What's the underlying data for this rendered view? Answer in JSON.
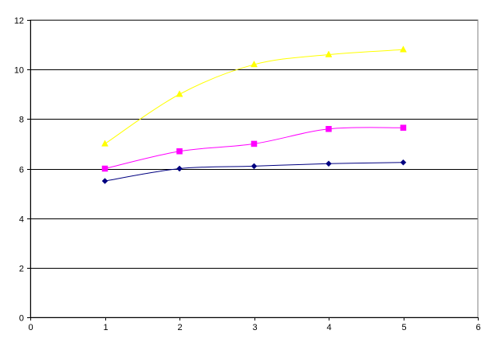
{
  "chart_data": {
    "type": "line",
    "title": "",
    "xlabel": "",
    "ylabel": "",
    "xlim": [
      0,
      6
    ],
    "ylim": [
      0,
      12
    ],
    "x_ticks": [
      0,
      1,
      2,
      3,
      4,
      5,
      6
    ],
    "y_ticks": [
      0,
      2,
      4,
      6,
      8,
      10,
      12
    ],
    "grid": "horizontal major gridlines",
    "legend": "none",
    "smoothed": true,
    "series": [
      {
        "marker": "triangle",
        "color": "#FFFF00",
        "x": [
          1,
          2,
          3,
          4,
          5
        ],
        "values": [
          7.0,
          9.0,
          10.2,
          10.6,
          10.8
        ]
      },
      {
        "marker": "square",
        "color": "#FF00FF",
        "x": [
          1,
          2,
          3,
          4,
          5
        ],
        "values": [
          6.0,
          6.7,
          7.0,
          7.6,
          7.65
        ]
      },
      {
        "marker": "diamond",
        "color": "#000080",
        "x": [
          1,
          2,
          3,
          4,
          5
        ],
        "values": [
          5.5,
          6.0,
          6.1,
          6.2,
          6.25
        ]
      }
    ]
  }
}
